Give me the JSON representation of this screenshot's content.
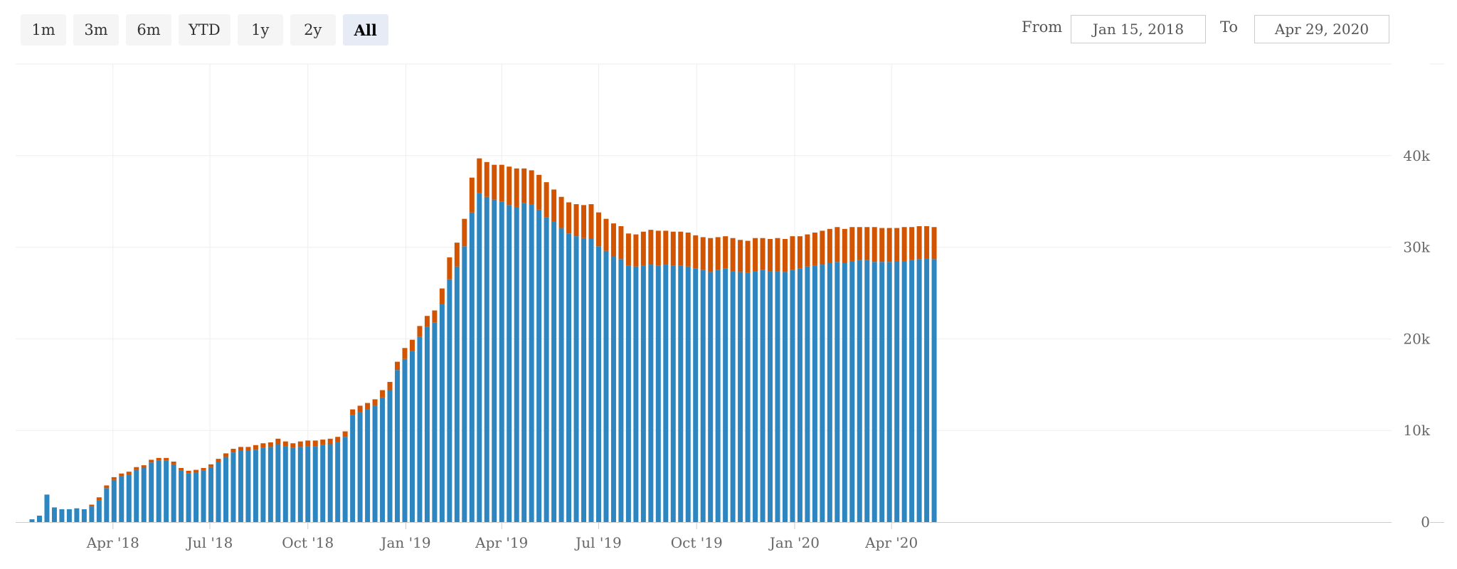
{
  "range_selector": {
    "buttons": [
      {
        "label": "1m",
        "active": false
      },
      {
        "label": "3m",
        "active": false
      },
      {
        "label": "6m",
        "active": false
      },
      {
        "label": "YTD",
        "active": false
      },
      {
        "label": "1y",
        "active": false
      },
      {
        "label": "2y",
        "active": false
      },
      {
        "label": "All",
        "active": true
      }
    ]
  },
  "date_range": {
    "from_label": "From",
    "from_value": "Jan 15, 2018",
    "to_label": "To",
    "to_value": "Apr 29, 2020"
  },
  "chart_data": {
    "type": "bar",
    "stacked": true,
    "x_start": "2018-01-15",
    "x_interval": "weekly",
    "x_ticks": [
      {
        "label": "Apr '18",
        "date": "2018-04-01"
      },
      {
        "label": "Jul '18",
        "date": "2018-07-01"
      },
      {
        "label": "Oct '18",
        "date": "2018-10-01"
      },
      {
        "label": "Jan '19",
        "date": "2019-01-01"
      },
      {
        "label": "Apr '19",
        "date": "2019-04-01"
      },
      {
        "label": "Jul '19",
        "date": "2019-07-01"
      },
      {
        "label": "Oct '19",
        "date": "2019-10-01"
      },
      {
        "label": "Jan '20",
        "date": "2020-01-01"
      },
      {
        "label": "Apr '20",
        "date": "2020-04-01"
      }
    ],
    "y_ticks": [
      {
        "label": "0",
        "value": 0
      },
      {
        "label": "10k",
        "value": 10000
      },
      {
        "label": "20k",
        "value": 20000
      },
      {
        "label": "30k",
        "value": 30000
      },
      {
        "label": "40k",
        "value": 40000
      }
    ],
    "ylim": [
      0,
      50000
    ],
    "grid": true,
    "colors": [
      "#2e86c1",
      "#d35400"
    ],
    "series": [
      {
        "values": [
          300,
          700,
          3000,
          1600,
          1400,
          1400,
          1500,
          1400,
          1700,
          2400,
          3700,
          4600,
          5000,
          5200,
          5700,
          5900,
          6500,
          6700,
          6700,
          6300,
          5600,
          5300,
          5400,
          5600,
          6000,
          6600,
          7100,
          7600,
          7800,
          7800,
          7900,
          8100,
          8200,
          8500,
          8300,
          8100,
          8200,
          8300,
          8300,
          8400,
          8500,
          8700,
          9300,
          11700,
          12000,
          12300,
          12700,
          13600,
          14400,
          16600,
          17800,
          18700,
          20200,
          21300,
          21800,
          23800,
          26500,
          27900,
          30100,
          33800,
          35900,
          35500,
          35200,
          35000,
          34600,
          34400,
          34800,
          34700,
          34100,
          33300,
          32800,
          32100,
          31500,
          31200,
          31000,
          30900,
          30100,
          29600,
          29000,
          28700,
          28000,
          27900,
          28000,
          28100,
          28000,
          28100,
          28000,
          28000,
          27900,
          27700,
          27500,
          27300,
          27500,
          27700,
          27400,
          27300,
          27200,
          27400,
          27500,
          27400,
          27400,
          27300,
          27500,
          27700,
          27900,
          28000,
          28100,
          28300,
          28400,
          28300,
          28500,
          28600,
          28600,
          28400,
          28400,
          28400,
          28500,
          28500,
          28600,
          28700,
          28800,
          28700
        ]
      },
      {
        "values": [
          0,
          0,
          0,
          0,
          0,
          0,
          0,
          0,
          200,
          300,
          300,
          300,
          300,
          300,
          300,
          300,
          300,
          300,
          300,
          300,
          300,
          300,
          300,
          300,
          300,
          300,
          400,
          400,
          400,
          400,
          500,
          500,
          500,
          600,
          500,
          500,
          600,
          600,
          600,
          600,
          600,
          600,
          600,
          600,
          700,
          700,
          700,
          800,
          900,
          900,
          1200,
          1200,
          1200,
          1200,
          1300,
          1700,
          2400,
          2600,
          3000,
          3800,
          3800,
          3800,
          3800,
          4000,
          4200,
          4200,
          3800,
          3700,
          3800,
          3800,
          3500,
          3400,
          3400,
          3500,
          3600,
          3800,
          3700,
          3500,
          3600,
          3600,
          3500,
          3500,
          3700,
          3800,
          3800,
          3700,
          3700,
          3700,
          3700,
          3600,
          3600,
          3700,
          3600,
          3500,
          3600,
          3500,
          3500,
          3600,
          3500,
          3500,
          3600,
          3600,
          3700,
          3500,
          3500,
          3600,
          3700,
          3700,
          3800,
          3700,
          3700,
          3600,
          3600,
          3800,
          3700,
          3700,
          3600,
          3700,
          3600,
          3600,
          3500,
          3500
        ]
      }
    ]
  }
}
